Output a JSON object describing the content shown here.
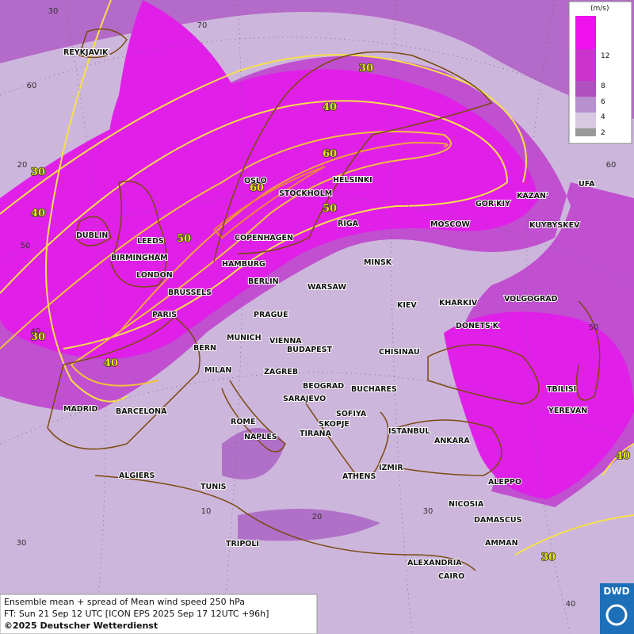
{
  "legend": {
    "unit": "(m/s)",
    "ticks": [
      12,
      8,
      6,
      4,
      2
    ]
  },
  "cities": [
    "REYKJAVIK",
    "OSLO",
    "STOCKHOLM",
    "HELSINKI",
    "DUBLIN",
    "LEEDS",
    "BIRMINGHAM",
    "LONDON",
    "COPENHAGEN",
    "RIGA",
    "HAMBURG",
    "BERLIN",
    "MINSK",
    "WARSAW",
    "KIEV",
    "KHARKIV",
    "BRUSSELS",
    "PARIS",
    "PRAGUE",
    "MUNICH",
    "VIENNA",
    "BUDAPEST",
    "BERN",
    "MILAN",
    "ZAGREB",
    "CHISINAU",
    "BEOGRAD",
    "BUCHARES",
    "SARAJEVO",
    "SOFIYA",
    "SKOPJE",
    "TIRANA",
    "ROME",
    "NAPLES",
    "ISTANBUL",
    "ANKARA",
    "MADRID",
    "BARCELONA",
    "ALGIERS",
    "TUNIS",
    "ATHENS",
    "IZMIR",
    "TRIPOLI",
    "ALEPPO",
    "NICOSIA",
    "DAMASCUS",
    "AMMAN",
    "ALEXANDRIA",
    "CAIRO",
    "TBILISI",
    "YEREVAN",
    "MOSCOW",
    "GOR'KIY",
    "KAZAN'",
    "UFA",
    "KUYBYSKEV",
    "VOLGOGRAD",
    "DONETS'K"
  ],
  "contour_labels": [
    30,
    40,
    60,
    30,
    40,
    50,
    60,
    50,
    30,
    40,
    40,
    30
  ],
  "grid_labels": [
    30,
    70,
    60,
    20,
    50,
    40,
    30,
    10,
    20,
    30,
    40,
    60,
    50
  ],
  "footer": [
    "Ensemble mean + spread of Mean wind speed 250 hPa",
    "FT: Sun 21 Sep 12 UTC [ICON EPS 2025 Sep 17 12UTC +96h]",
    "©2025 Deutscher Wetterdienst"
  ],
  "logo": "DWD"
}
